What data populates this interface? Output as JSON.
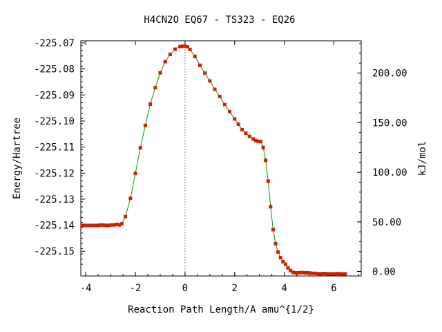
{
  "chart_data": {
    "type": "scatter",
    "title": "H4CN2O   EQ67 - TS323 - EQ26",
    "xlabel": "Reaction Path Length/A amu^{1/2}",
    "ylabel": "Energy/Hartree",
    "y2label": "kJ/mol",
    "xlim": [
      -4.2,
      7.1
    ],
    "ylim": [
      -225.1595,
      -225.0692
    ],
    "y2lim": [
      -4.5,
      232.5
    ],
    "x_ticks": [
      "-4",
      "-2",
      "0",
      "2",
      "4",
      "6"
    ],
    "y_ticks": [
      "-225.07",
      "-225.08",
      "-225.09",
      "-225.10",
      "-225.11",
      "-225.12",
      "-225.13",
      "-225.14",
      "-225.15"
    ],
    "y2_ticks": [
      "0.00",
      "50.00",
      "100.00",
      "150.00",
      "200.00"
    ],
    "ts_x": 0,
    "colors": {
      "line": "#009900",
      "marker": "#cc2200",
      "ts_line": "#888888"
    },
    "series": [
      {
        "x": [
          -4.15,
          -4.05,
          -3.95,
          -3.85,
          -3.75,
          -3.65,
          -3.55,
          -3.45,
          -3.35,
          -3.25,
          -3.15,
          -3.05,
          -2.95,
          -2.85,
          -2.75,
          -2.65,
          -2.55,
          -2.4,
          -2.2,
          -2.0,
          -1.8,
          -1.6,
          -1.4,
          -1.2,
          -1.0,
          -0.8,
          -0.6,
          -0.4,
          -0.2,
          -0.1,
          0.0,
          0.1,
          0.2,
          0.4,
          0.6,
          0.8,
          1.0,
          1.2,
          1.4,
          1.6,
          1.8,
          2.0,
          2.15,
          2.3,
          2.45,
          2.6,
          2.75,
          2.85,
          2.95,
          3.05,
          3.15,
          3.25,
          3.35,
          3.45,
          3.55,
          3.65,
          3.75,
          3.85,
          3.95,
          4.05,
          4.15,
          4.25,
          4.35,
          4.45,
          4.55,
          4.65,
          4.75,
          4.85,
          4.95,
          5.05,
          5.15,
          5.25,
          5.35,
          5.45,
          5.55,
          5.65,
          5.75,
          5.85,
          5.95,
          6.05,
          6.15,
          6.25,
          6.35,
          6.45
        ],
        "y": [
          -225.1401,
          -225.1401,
          -225.1401,
          -225.1401,
          -225.1401,
          -225.1401,
          -225.1401,
          -225.14,
          -225.1399,
          -225.14,
          -225.1401,
          -225.14,
          -225.1399,
          -225.1399,
          -225.1397,
          -225.1399,
          -225.1395,
          -225.1367,
          -225.1297,
          -225.1201,
          -225.1103,
          -225.1017,
          -225.0935,
          -225.0872,
          -225.0815,
          -225.0772,
          -225.0744,
          -225.0724,
          -225.0714,
          -225.0713,
          -225.0713,
          -225.0715,
          -225.0725,
          -225.0752,
          -225.0786,
          -225.0816,
          -225.0846,
          -225.0878,
          -225.0906,
          -225.0937,
          -225.0964,
          -225.0992,
          -225.1012,
          -225.1033,
          -225.1047,
          -225.1059,
          -225.1069,
          -225.1075,
          -225.1078,
          -225.1079,
          -225.1101,
          -225.1151,
          -225.1231,
          -225.1329,
          -225.1417,
          -225.1471,
          -225.1503,
          -225.1525,
          -225.154,
          -225.155,
          -225.1564,
          -225.1574,
          -225.1581,
          -225.1583,
          -225.1583,
          -225.1582,
          -225.1582,
          -225.1583,
          -225.1583,
          -225.1584,
          -225.1585,
          -225.1585,
          -225.1586,
          -225.1587,
          -225.1586,
          -225.1586,
          -225.1587,
          -225.1587,
          -225.1587,
          -225.1587,
          -225.1586,
          -225.1587,
          -225.1587,
          -225.1587
        ]
      }
    ]
  }
}
